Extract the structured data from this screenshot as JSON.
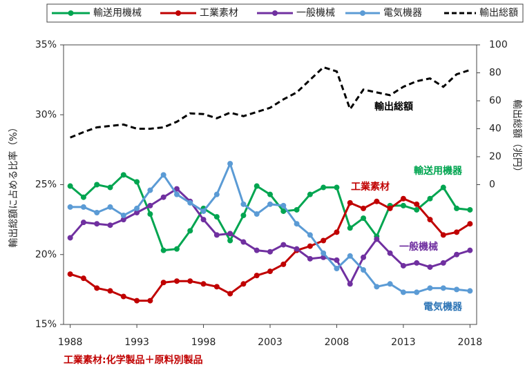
{
  "chart_data": {
    "type": "line",
    "ylabel": "輸出総額に占める比率（%）",
    "y2label": "輸出総額（兆円）",
    "x": [
      1988,
      1989,
      1990,
      1991,
      1992,
      1993,
      1994,
      1995,
      1996,
      1997,
      1998,
      1999,
      2000,
      2001,
      2002,
      2003,
      2004,
      2005,
      2006,
      2007,
      2008,
      2009,
      2010,
      2011,
      2012,
      2013,
      2014,
      2015,
      2016,
      2017,
      2018
    ],
    "xlim": [
      1987.5,
      2018.5
    ],
    "xticks": [
      1988,
      1993,
      1998,
      2003,
      2008,
      2013,
      2018
    ],
    "ylim": [
      15,
      35
    ],
    "yticks": [
      {
        "value": 15,
        "label": "15%"
      },
      {
        "value": 20,
        "label": "20%"
      },
      {
        "value": 25,
        "label": "25%"
      },
      {
        "value": 30,
        "label": "30%"
      },
      {
        "value": 35,
        "label": "35%"
      }
    ],
    "y2lim": [
      -100,
      100
    ],
    "y2ticks": [
      0,
      20,
      40,
      60,
      80,
      100
    ],
    "series": [
      {
        "name": "輸送用機械",
        "color": "#00a550",
        "marker": "circle",
        "values": [
          24.9,
          24.1,
          25.0,
          24.8,
          25.7,
          25.2,
          22.9,
          20.3,
          20.4,
          21.7,
          23.3,
          22.7,
          21.0,
          22.8,
          24.9,
          24.3,
          23.1,
          23.2,
          24.3,
          24.8,
          24.8,
          21.9,
          22.6,
          21.3,
          23.5,
          23.5,
          23.2,
          24.0,
          24.8,
          23.3,
          23.2
        ]
      },
      {
        "name": "工業素材",
        "color": "#c00000",
        "marker": "circle",
        "values": [
          18.6,
          18.3,
          17.6,
          17.4,
          17.0,
          16.7,
          16.7,
          18.0,
          18.1,
          18.1,
          17.9,
          17.7,
          17.2,
          17.9,
          18.5,
          18.8,
          19.3,
          20.3,
          20.6,
          21.0,
          21.6,
          23.7,
          23.3,
          23.8,
          23.3,
          24.0,
          23.6,
          22.5,
          21.4,
          21.6,
          22.2
        ]
      },
      {
        "name": "一般機械",
        "color": "#7030a0",
        "marker": "circle",
        "values": [
          21.2,
          22.3,
          22.2,
          22.1,
          22.5,
          23.0,
          23.5,
          24.1,
          24.7,
          23.8,
          22.5,
          21.4,
          21.5,
          20.9,
          20.3,
          20.2,
          20.7,
          20.4,
          19.7,
          19.8,
          19.6,
          17.9,
          19.8,
          21.1,
          20.1,
          19.2,
          19.4,
          19.1,
          19.4,
          20.0,
          20.3
        ]
      },
      {
        "name": "電気機器",
        "color": "#5b9bd5",
        "marker": "circle",
        "values": [
          23.4,
          23.4,
          23.0,
          23.4,
          22.8,
          23.3,
          24.6,
          25.7,
          24.3,
          23.7,
          23.1,
          24.3,
          26.5,
          23.6,
          22.9,
          23.6,
          23.5,
          22.2,
          21.4,
          20.1,
          19.0,
          19.9,
          18.9,
          17.7,
          17.9,
          17.3,
          17.3,
          17.6,
          17.6,
          17.5,
          17.4
        ]
      },
      {
        "name": "輸出総額",
        "color": "#000000",
        "dashed": true,
        "axis": "y2",
        "values": [
          33.7,
          37.6,
          41,
          42,
          43,
          40,
          40,
          41,
          45,
          51,
          50.5,
          47.5,
          51.5,
          49,
          52,
          55,
          61,
          66,
          75,
          84,
          81,
          54,
          68,
          66,
          64,
          70,
          74,
          76,
          70,
          79,
          82
        ]
      }
    ],
    "annotations": [
      {
        "text": "輸出総額",
        "color": "#000000"
      },
      {
        "text": "輸送用機器",
        "color": "#00a550"
      },
      {
        "text": "工業素材",
        "color": "#c00000"
      },
      {
        "text": "一般機械",
        "color": "#7030a0"
      },
      {
        "text": "電気機器",
        "color": "#2e75b6"
      }
    ],
    "footnote": "工業素材:化学製品＋原料別製品"
  }
}
